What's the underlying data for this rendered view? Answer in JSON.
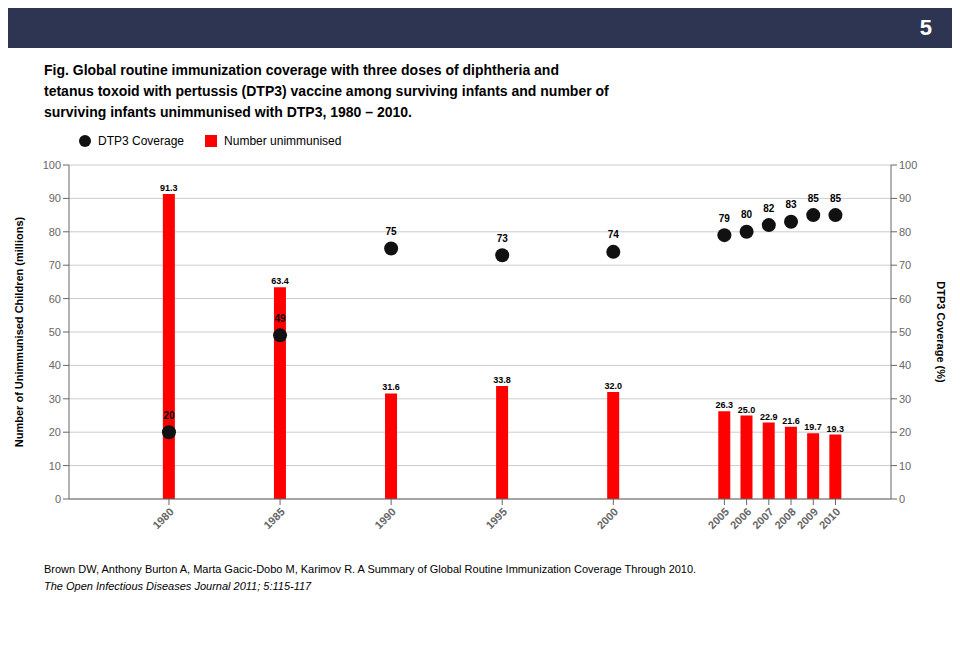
{
  "chart_data": {
    "type": "bar",
    "title": "Fig. Global routine immunization coverage with three doses of diphtheria and\ntetanus toxoid with pertussis (DTP3) vaccine among surviving infants and number of\nsurviving infants unimmunised with DTP3, 1980 – 2010.",
    "annotations": [
      "5",
      "Brown DW, Anthony Burton A, Marta Gacic-Dobo M, Karimov R. A Summary of Global Routine Immunization Coverage Through 2010.",
      "The Open Infectious Diseases Journal 2011; 5:115-117"
    ],
    "x": [
      1980,
      1985,
      1990,
      1995,
      2000,
      2005,
      2006,
      2007,
      2008,
      2009,
      2010
    ],
    "xlim": [
      1975.5,
      2012.5
    ],
    "xticks": [
      1980,
      1985,
      1990,
      1995,
      2000,
      2005,
      2006,
      2007,
      2008,
      2009,
      2010
    ],
    "ylim": [
      0,
      100
    ],
    "yticks": [
      0,
      10,
      20,
      30,
      40,
      50,
      60,
      70,
      80,
      90,
      100
    ],
    "y2lim": [
      0,
      100
    ],
    "y2ticks": [
      0,
      10,
      20,
      30,
      40,
      50,
      60,
      70,
      80,
      90,
      100
    ],
    "ylabel": "Number of Unimmunised Children (millions)",
    "y2label": "DTP3 Coverage (%)",
    "grid": true,
    "legend": "upper left",
    "data_labels": true,
    "series": [
      {
        "name": "DTP3 Coverage",
        "type": "scatter",
        "marker": "circle",
        "color": "#111111",
        "axis": "y2",
        "values": [
          20,
          49,
          75,
          73,
          74,
          79,
          80,
          82,
          83,
          85,
          85
        ]
      },
      {
        "name": "Number unimmunised",
        "type": "bar",
        "color": "#ff0000",
        "values": [
          91.3,
          63.4,
          31.6,
          33.8,
          32.0,
          26.3,
          25.0,
          22.9,
          21.6,
          19.7,
          19.3
        ],
        "value_labels": [
          "91.3",
          "63.4",
          "31.6",
          "33.8",
          "32.0",
          "26.3",
          "25.0",
          "22.9",
          "21.6",
          "19.7",
          "19.3"
        ]
      }
    ]
  }
}
